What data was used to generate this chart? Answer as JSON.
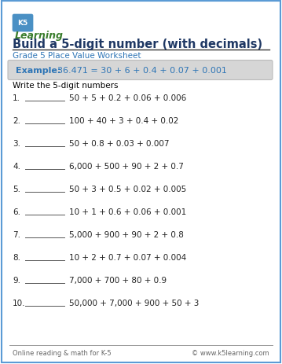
{
  "title": "Build a 5-digit number (with decimals)",
  "subtitle": "Grade 5 Place Value Worksheet",
  "example_label": "Example:",
  "example_equation": "36.471 = 30 + 6 + 0.4 + 0.07 + 0.001",
  "instruction": "Write the 5-digit numbers",
  "problems": [
    "50 + 5 + 0.2 + 0.06 + 0.006",
    "100 + 40 + 3 + 0.4 + 0.02",
    "50 + 0.8 + 0.03 + 0.007",
    "6,000 + 500 + 90 + 2 + 0.7",
    "50 + 3 + 0.5 + 0.02 + 0.005",
    "10 + 1 + 0.6 + 0.06 + 0.001",
    "5,000 + 900 + 90 + 2 + 0.8",
    "10 + 2 + 0.7 + 0.07 + 0.004",
    "7,000 + 700 + 80 + 0.9",
    "50,000 + 7,000 + 900 + 50 + 3"
  ],
  "footer_left": "Online reading & math for K-5",
  "footer_right": "© www.k5learning.com",
  "bg_color": "#ffffff",
  "border_color": "#5b9bd5",
  "title_color": "#1f3864",
  "subtitle_color": "#2e75b6",
  "example_color": "#2e75b6",
  "instruction_color": "#000000",
  "problem_color": "#222222",
  "example_bg": "#d6d6d6",
  "footer_color": "#666666",
  "line_color": "#000000",
  "logo_green_dark": "#3a7d2c",
  "logo_green_light": "#6db33f",
  "logo_blue": "#4a90c4"
}
